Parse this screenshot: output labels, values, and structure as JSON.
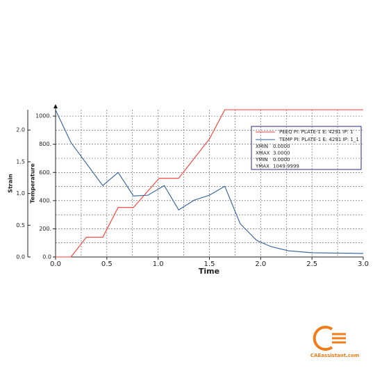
{
  "chart_data": {
    "type": "line",
    "xlabel": "Time",
    "ylabel": "Strain",
    "y2label": "Temperature",
    "xlim": [
      0,
      3
    ],
    "ylim": [
      0,
      2.32
    ],
    "y2lim": [
      0,
      1045
    ],
    "xticks": [
      {
        "value": 0,
        "label": "0.0"
      },
      {
        "value": 0.5,
        "label": "0.5"
      },
      {
        "value": 1,
        "label": "1.0"
      },
      {
        "value": 1.5,
        "label": "1.5"
      },
      {
        "value": 2,
        "label": "2.0"
      },
      {
        "value": 2.5,
        "label": "2.5"
      },
      {
        "value": 3,
        "label": "3.0"
      }
    ],
    "yticks": [
      {
        "value": 0,
        "label": "0.0"
      },
      {
        "value": 0.5,
        "label": "0.5"
      },
      {
        "value": 1,
        "label": "1.0"
      },
      {
        "value": 1.5,
        "label": "1.5"
      },
      {
        "value": 2,
        "label": "2.0"
      }
    ],
    "y2ticks": [
      {
        "value": 0,
        "label": "0.0"
      },
      {
        "value": 200,
        "label": "200."
      },
      {
        "value": 400,
        "label": "400."
      },
      {
        "value": 600,
        "label": "600."
      },
      {
        "value": 800,
        "label": "800."
      },
      {
        "value": 1000,
        "label": "1000."
      }
    ],
    "xgrid": [
      0.25,
      0.5,
      0.75,
      1,
      1.25,
      1.5,
      1.75,
      2,
      2.25,
      2.5,
      2.75
    ],
    "y2grid": [
      100,
      200,
      300,
      400,
      500,
      600,
      700,
      800,
      900,
      1000
    ],
    "grid": true,
    "series": [
      {
        "name": "PEEQ PI: PLATE-1 E: 4291 IP: 1",
        "color": "#ff3b30",
        "x": [
          0,
          0.15,
          0.3,
          0.46,
          0.61,
          0.76,
          1.01,
          1.2,
          1.5,
          1.65,
          3.0
        ],
        "values": [
          0,
          0,
          0.31,
          0.31,
          0.78,
          0.78,
          1.24,
          1.24,
          1.86,
          2.32,
          2.32
        ]
      },
      {
        "name": "TEMP PI: PLATE-1 E: 4291 IP: 1_1",
        "color": "#2f5f9a",
        "axis": "y2",
        "x": [
          0,
          0.15,
          0.46,
          0.61,
          0.76,
          0.9,
          1.06,
          1.2,
          1.35,
          1.5,
          1.65,
          1.8,
          1.96,
          2.1,
          2.27,
          2.5,
          3.0
        ],
        "values": [
          1043,
          812,
          507,
          600,
          433,
          438,
          507,
          334,
          403,
          438,
          502,
          236,
          118,
          74,
          44,
          30,
          25
        ]
      }
    ],
    "stats": [
      {
        "label": "XMIN",
        "value": "0.0000"
      },
      {
        "label": "XMAX",
        "value": "3.0000"
      },
      {
        "label": "YMIN",
        "value": "0.0000"
      },
      {
        "label": "YMAX",
        "value": "1049.9999"
      }
    ]
  },
  "logo": {
    "text": "CAEassistant.com"
  }
}
